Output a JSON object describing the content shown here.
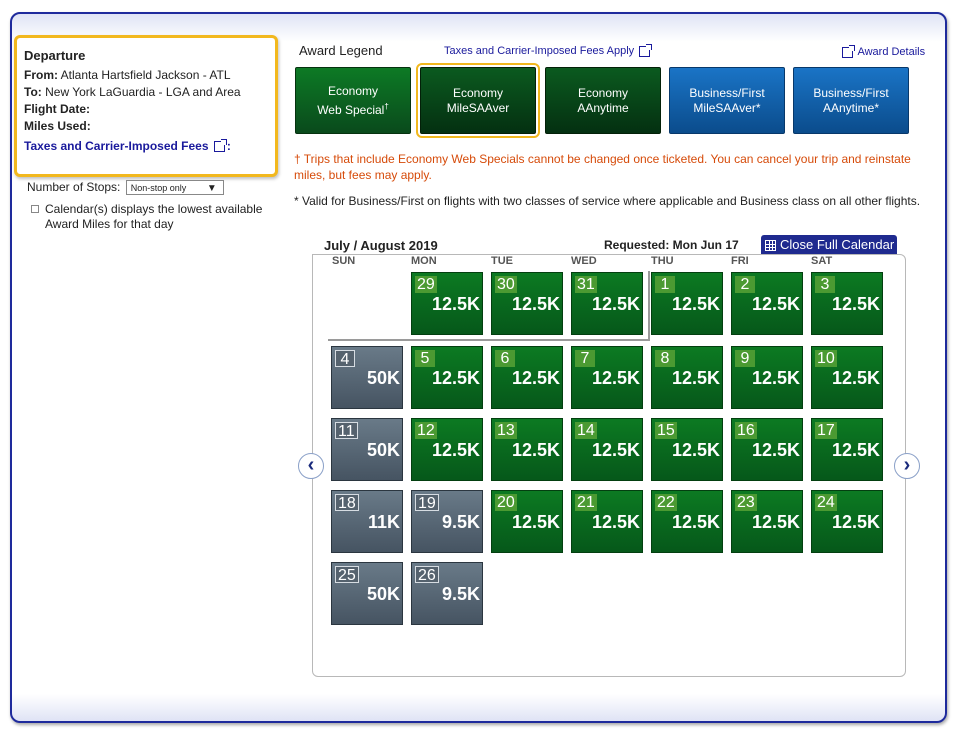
{
  "departure": {
    "title": "Departure",
    "from_label": "From:",
    "from_value": "Atlanta Hartsfield Jackson - ATL",
    "to_label": "To:",
    "to_value": "New York LaGuardia - LGA and Area",
    "flight_date_label": "Flight Date:",
    "miles_used_label": "Miles Used:",
    "fees_link": "Taxes and Carrier-Imposed Fees",
    "fees_colon": ":"
  },
  "filters": {
    "stops_label": "Number of Stops:",
    "stops_value": "Non-stop only",
    "calendar_option": "Calendar(s) displays the lowest available Award Miles for that day"
  },
  "legend": {
    "title": "Award Legend",
    "fees_link": "Taxes and Carrier-Imposed Fees Apply",
    "details_link": "Award Details",
    "items": [
      {
        "line1": "Economy",
        "line2": "Web Special",
        "mark": "†"
      },
      {
        "line1": "Economy",
        "line2": "MileSAAver",
        "mark": ""
      },
      {
        "line1": "Economy",
        "line2": "AAnytime",
        "mark": ""
      },
      {
        "line1": "Business/First",
        "line2": "MileSAAver*",
        "mark": ""
      },
      {
        "line1": "Business/First",
        "line2": "AAnytime*",
        "mark": ""
      }
    ]
  },
  "notes": {
    "web_special": "† Trips that include Economy Web Specials cannot be changed once ticketed. You can cancel your trip and reinstate miles, but fees may apply.",
    "business": "* Valid for Business/First on flights with two classes of service where applicable and Business class on all other flights."
  },
  "calendar": {
    "month_title": "July / August 2019",
    "requested": "Requested: Mon Jun 17",
    "close_button": "Close Full Calendar",
    "weekdays": [
      "SUN",
      "MON",
      "TUE",
      "WED",
      "THU",
      "FRI",
      "SAT"
    ],
    "days": [
      {
        "day": "29",
        "miles": "12.5K",
        "kind": "econ"
      },
      {
        "day": "30",
        "miles": "12.5K",
        "kind": "econ"
      },
      {
        "day": "31",
        "miles": "12.5K",
        "kind": "econ"
      },
      {
        "day": "1",
        "miles": "12.5K",
        "kind": "econ"
      },
      {
        "day": "2",
        "miles": "12.5K",
        "kind": "econ"
      },
      {
        "day": "3",
        "miles": "12.5K",
        "kind": "econ"
      },
      {
        "day": "4",
        "miles": "50K",
        "kind": "gray"
      },
      {
        "day": "5",
        "miles": "12.5K",
        "kind": "econ"
      },
      {
        "day": "6",
        "miles": "12.5K",
        "kind": "econ"
      },
      {
        "day": "7",
        "miles": "12.5K",
        "kind": "econ"
      },
      {
        "day": "8",
        "miles": "12.5K",
        "kind": "econ"
      },
      {
        "day": "9",
        "miles": "12.5K",
        "kind": "econ"
      },
      {
        "day": "10",
        "miles": "12.5K",
        "kind": "econ"
      },
      {
        "day": "11",
        "miles": "50K",
        "kind": "gray"
      },
      {
        "day": "12",
        "miles": "12.5K",
        "kind": "econ"
      },
      {
        "day": "13",
        "miles": "12.5K",
        "kind": "econ"
      },
      {
        "day": "14",
        "miles": "12.5K",
        "kind": "econ"
      },
      {
        "day": "15",
        "miles": "12.5K",
        "kind": "econ"
      },
      {
        "day": "16",
        "miles": "12.5K",
        "kind": "econ"
      },
      {
        "day": "17",
        "miles": "12.5K",
        "kind": "econ"
      },
      {
        "day": "18",
        "miles": "11K",
        "kind": "gray"
      },
      {
        "day": "19",
        "miles": "9.5K",
        "kind": "gray"
      },
      {
        "day": "20",
        "miles": "12.5K",
        "kind": "econ"
      },
      {
        "day": "21",
        "miles": "12.5K",
        "kind": "econ"
      },
      {
        "day": "22",
        "miles": "12.5K",
        "kind": "econ"
      },
      {
        "day": "23",
        "miles": "12.5K",
        "kind": "econ"
      },
      {
        "day": "24",
        "miles": "12.5K",
        "kind": "econ"
      },
      {
        "day": "25",
        "miles": "50K",
        "kind": "gray"
      },
      {
        "day": "26",
        "miles": "9.5K",
        "kind": "gray"
      }
    ],
    "prev_icon": "chevron-left-icon",
    "next_icon": "chevron-right-icon",
    "prev_glyph": "‹",
    "next_glyph": "›"
  },
  "colors": {
    "frame_border": "#1e2a9c",
    "departure_border": "#f2b81e",
    "economy_green": "#0c7a22",
    "unavailable_gray": "#55626e",
    "business_blue": "#1a74c6",
    "warning_text": "#d64b0a"
  }
}
